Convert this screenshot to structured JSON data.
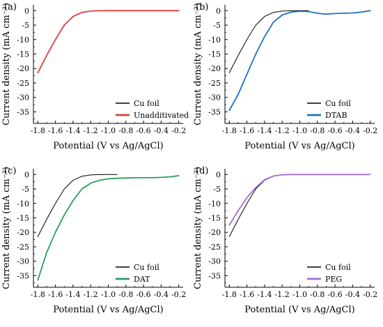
{
  "chart_data": [
    {
      "type": "line",
      "panel_label": "(a)",
      "xlabel": "Potential (V vs Ag/AgCl)",
      "ylabel": "Current density (mA cm⁻²)",
      "xlim": [
        -1.85,
        -0.15
      ],
      "ylim": [
        -39,
        2
      ],
      "xticks": [
        -1.8,
        -1.6,
        -1.4,
        -1.2,
        -1.0,
        -0.8,
        -0.6,
        -0.4,
        -0.2
      ],
      "yticks": [
        0,
        -5,
        -10,
        -15,
        -20,
        -25,
        -30,
        -35
      ],
      "grid": false,
      "legend_position": "bottom-right",
      "series": [
        {
          "name": "Cu foil",
          "color": "#000000",
          "width": 1.0,
          "x": [
            -1.8,
            -1.7,
            -1.6,
            -1.5,
            -1.4,
            -1.3,
            -1.2,
            -1.1,
            -1.0,
            -0.9
          ],
          "y": [
            -21.5,
            -15.5,
            -10,
            -5,
            -2,
            -0.6,
            -0.15,
            -0.03,
            0,
            0
          ]
        },
        {
          "name": "Unadditivated",
          "color": "#e03c3c",
          "width": 1.8,
          "x": [
            -1.8,
            -1.7,
            -1.6,
            -1.5,
            -1.4,
            -1.3,
            -1.2,
            -1.1,
            -1.0,
            -0.9,
            -0.2
          ],
          "y": [
            -21.5,
            -15.5,
            -10,
            -5,
            -2,
            -0.6,
            -0.15,
            -0.03,
            0,
            0,
            0
          ]
        }
      ]
    },
    {
      "type": "line",
      "panel_label": "(b)",
      "xlabel": "Potential (V vs Ag/AgCl)",
      "ylabel": "Current density (mA cm⁻²)",
      "xlim": [
        -1.85,
        -0.15
      ],
      "ylim": [
        -39,
        2
      ],
      "xticks": [
        -1.8,
        -1.6,
        -1.4,
        -1.2,
        -1.0,
        -0.8,
        -0.6,
        -0.4,
        -0.2
      ],
      "yticks": [
        0,
        -5,
        -10,
        -15,
        -20,
        -25,
        -30,
        -35
      ],
      "grid": false,
      "legend_position": "bottom-right",
      "series": [
        {
          "name": "Cu foil",
          "color": "#000000",
          "width": 1.0,
          "x": [
            -1.8,
            -1.7,
            -1.6,
            -1.5,
            -1.4,
            -1.3,
            -1.2,
            -1.1,
            -1.0,
            -0.9
          ],
          "y": [
            -21.5,
            -15.5,
            -10,
            -5,
            -2,
            -0.6,
            -0.15,
            -0.03,
            0,
            0
          ]
        },
        {
          "name": "DTAB",
          "color": "#1f6fc4",
          "width": 1.8,
          "x": [
            -1.8,
            -1.7,
            -1.6,
            -1.5,
            -1.4,
            -1.3,
            -1.2,
            -1.1,
            -1.0,
            -0.9,
            -0.8,
            -0.7,
            -0.6,
            -0.5,
            -0.4,
            -0.3,
            -0.2
          ],
          "y": [
            -34.5,
            -29,
            -22,
            -15,
            -9,
            -4,
            -1.5,
            -0.5,
            -0.2,
            -0.3,
            -0.9,
            -1.2,
            -1.0,
            -0.9,
            -0.8,
            -0.5,
            0
          ]
        }
      ]
    },
    {
      "type": "line",
      "panel_label": "(c)",
      "xlabel": "Potential (V vs Ag/AgCl)",
      "ylabel": "Current density (mA cm⁻²)",
      "xlim": [
        -1.85,
        -0.15
      ],
      "ylim": [
        -39,
        2
      ],
      "xticks": [
        -1.8,
        -1.6,
        -1.4,
        -1.2,
        -1.0,
        -0.8,
        -0.6,
        -0.4,
        -0.2
      ],
      "yticks": [
        0,
        -5,
        -10,
        -15,
        -20,
        -25,
        -30,
        -35
      ],
      "grid": false,
      "legend_position": "bottom-right",
      "series": [
        {
          "name": "Cu foil",
          "color": "#000000",
          "width": 1.0,
          "x": [
            -1.8,
            -1.7,
            -1.6,
            -1.5,
            -1.4,
            -1.3,
            -1.2,
            -1.1,
            -1.0,
            -0.9
          ],
          "y": [
            -21.5,
            -15.5,
            -10,
            -5,
            -2,
            -0.6,
            -0.15,
            -0.03,
            0,
            0
          ]
        },
        {
          "name": "DAT",
          "color": "#2a9d5c",
          "width": 1.8,
          "x": [
            -1.8,
            -1.7,
            -1.6,
            -1.5,
            -1.4,
            -1.3,
            -1.2,
            -1.1,
            -1.0,
            -0.9,
            -0.8,
            -0.7,
            -0.6,
            -0.5,
            -0.4,
            -0.3,
            -0.2
          ],
          "y": [
            -36.5,
            -27,
            -20,
            -14,
            -9,
            -5,
            -3,
            -2,
            -1.5,
            -1.3,
            -1.2,
            -1.1,
            -1.1,
            -1.1,
            -1.0,
            -0.8,
            -0.4
          ]
        }
      ]
    },
    {
      "type": "line",
      "panel_label": "(d)",
      "xlabel": "Potential (V vs Ag/AgCl)",
      "ylabel": "Current density (mA cm⁻²)",
      "xlim": [
        -1.85,
        -0.15
      ],
      "ylim": [
        -39,
        2
      ],
      "xticks": [
        -1.8,
        -1.6,
        -1.4,
        -1.2,
        -1.0,
        -0.8,
        -0.6,
        -0.4,
        -0.2
      ],
      "yticks": [
        0,
        -5,
        -10,
        -15,
        -20,
        -25,
        -30,
        -35
      ],
      "grid": false,
      "legend_position": "bottom-right",
      "series": [
        {
          "name": "Cu foil",
          "color": "#000000",
          "width": 1.0,
          "x": [
            -1.8,
            -1.7,
            -1.6,
            -1.5,
            -1.4,
            -1.3,
            -1.2,
            -1.1,
            -1.0,
            -0.9
          ],
          "y": [
            -21.5,
            -15.5,
            -10,
            -5,
            -2,
            -0.6,
            -0.15,
            -0.03,
            0,
            0
          ]
        },
        {
          "name": "PEG",
          "color": "#a46fd6",
          "width": 1.8,
          "x": [
            -1.8,
            -1.7,
            -1.6,
            -1.5,
            -1.4,
            -1.3,
            -1.2,
            -1.1,
            -1.0,
            -0.9,
            -0.2
          ],
          "y": [
            -17.5,
            -12.5,
            -8,
            -4.5,
            -1.8,
            -0.5,
            -0.1,
            0,
            0,
            0,
            0
          ]
        }
      ]
    }
  ]
}
